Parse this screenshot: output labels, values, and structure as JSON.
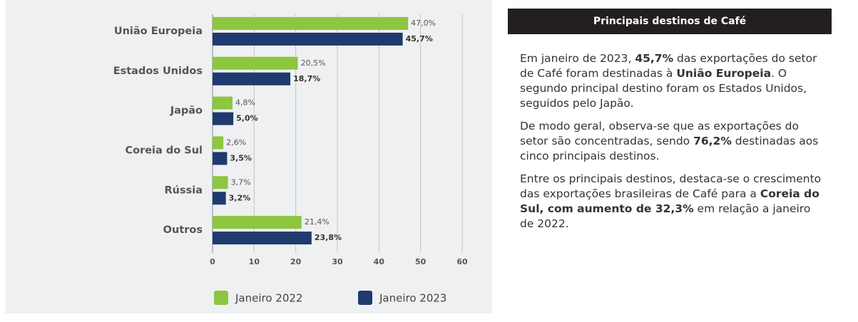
{
  "chart_data": {
    "type": "barh",
    "categories": [
      "União Europeia",
      "Estados Unidos",
      "Japão",
      "Coreia do Sul",
      "Rússia",
      "Outros"
    ],
    "series": [
      {
        "name": "Janeiro 2022",
        "color": "#8dc63f",
        "values": [
          47.0,
          20.5,
          4.8,
          2.6,
          3.7,
          21.4
        ],
        "value_labels": [
          "47,0%",
          "20,5%",
          "4,8%",
          "2,6%",
          "3,7%",
          "21,4%"
        ]
      },
      {
        "name": "Janeiro 2023",
        "color": "#1f3a6e",
        "values": [
          45.7,
          18.7,
          5.0,
          3.5,
          3.2,
          23.8
        ],
        "value_labels": [
          "45,7%",
          "18,7%",
          "5,0%",
          "3,5%",
          "3,2%",
          "23,8%"
        ]
      }
    ],
    "xlim": [
      0,
      60
    ],
    "xticks": [
      0,
      10,
      20,
      30,
      40,
      50,
      60
    ],
    "grid": true,
    "legend": "bottom"
  },
  "panel": {
    "title": "Principais destinos de Café",
    "paragraphs": [
      [
        {
          "text": "Em janeiro de 2023, "
        },
        {
          "text": "45,7%",
          "bold": true
        },
        {
          "text": " das exportações do setor de Café foram destinadas à "
        },
        {
          "text": "União Europeia",
          "bold": true
        },
        {
          "text": ". O segundo principal destino foram os Estados Unidos, seguidos pelo Japão."
        }
      ],
      [
        {
          "text": "De modo geral, observa-se que as exportações do setor são concentradas, sendo "
        },
        {
          "text": "76,2%",
          "bold": true
        },
        {
          "text": " destinadas aos cinco principais destinos."
        }
      ],
      [
        {
          "text": "Entre os principais destinos, destaca-se o crescimento das exportações brasileiras de Café para a "
        },
        {
          "text": "Coreia do Sul, com aumento de 32,3%",
          "bold": true
        },
        {
          "text": " em relação a janeiro de 2022."
        }
      ]
    ]
  }
}
